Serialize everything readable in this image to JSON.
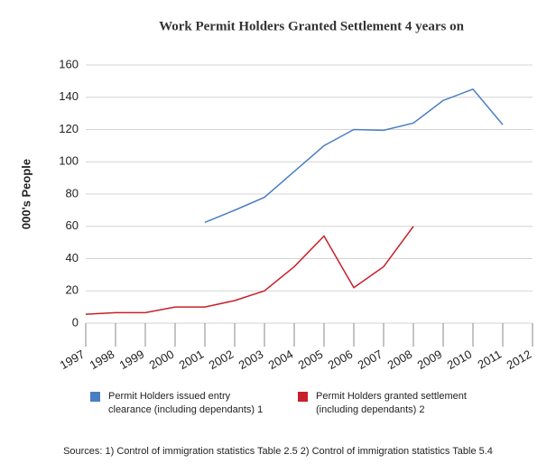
{
  "chart_data": {
    "type": "line",
    "title": "Work Permit Holders Granted Settlement 4 years on",
    "y_label": "000's People",
    "categories": [
      "1997",
      "1998",
      "1999",
      "2000",
      "2001",
      "2002",
      "2003",
      "2004",
      "2005",
      "2006",
      "2007",
      "2008",
      "2009",
      "2010",
      "2011",
      "2012"
    ],
    "series": [
      {
        "name": "Permit Holders issued entry clearance (including dependants) 1",
        "color": "#4a7ec4",
        "values": [
          null,
          null,
          null,
          null,
          62.5,
          70,
          78,
          94,
          110,
          120,
          119.5,
          124,
          138,
          145,
          123,
          null
        ]
      },
      {
        "name": "Permit Holders granted settlement (including dependants) 2",
        "color": "#c8202a",
        "values": [
          5.5,
          6.5,
          6.5,
          10,
          10,
          14,
          20,
          35,
          54,
          22,
          35,
          60,
          null,
          null,
          null,
          null
        ]
      }
    ],
    "ylim": [
      0,
      160
    ],
    "yticks": [
      0,
      20,
      40,
      60,
      80,
      100,
      120,
      140,
      160
    ],
    "grid": true,
    "source": "Sources: 1) Control of immigration statistics Table 2.5   2) Control of immigration statistics Table 5.4"
  }
}
